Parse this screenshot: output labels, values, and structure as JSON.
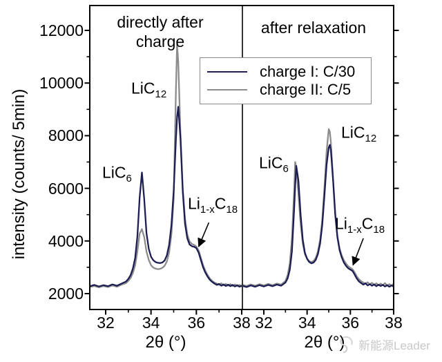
{
  "legend": {
    "items": [
      {
        "label": "charge I: C/30",
        "color": "#1e1e55"
      },
      {
        "label": "charge II: C/5",
        "color": "#8c8c8c"
      }
    ]
  },
  "watermark": {
    "text": "新能源Leader",
    "icon": "swirl-logo-icon",
    "color": "#c8c8c8"
  },
  "colors": {
    "axis": "#000000",
    "charge1": "#1e1e55",
    "charge2": "#8c8c8c",
    "legend_border": "#8a8a8a"
  },
  "chart_data": [
    {
      "type": "line",
      "title": "directly after charge",
      "xlabel": "2θ (°)",
      "ylabel": "intensity (counts/ 5min)",
      "xlim": [
        31.3,
        38
      ],
      "ylim": [
        1400,
        12950
      ],
      "xticks": [
        32,
        34,
        36,
        38
      ],
      "xminorticks": [
        33,
        35,
        37
      ],
      "yticks": [
        2000,
        4000,
        6000,
        8000,
        10000,
        12000
      ],
      "yminorticks": [
        3000,
        5000,
        7000,
        9000,
        11000
      ],
      "x": [
        31.3,
        31.5,
        31.7,
        31.9,
        32.1,
        32.3,
        32.5,
        32.7,
        32.9,
        33.0,
        33.1,
        33.2,
        33.3,
        33.4,
        33.5,
        33.6,
        33.7,
        33.8,
        33.9,
        34.0,
        34.1,
        34.2,
        34.3,
        34.4,
        34.5,
        34.6,
        34.7,
        34.8,
        34.9,
        35.0,
        35.1,
        35.15,
        35.2,
        35.3,
        35.4,
        35.5,
        35.6,
        35.7,
        35.8,
        35.9,
        36.0,
        36.1,
        36.2,
        36.3,
        36.4,
        36.5,
        36.6,
        36.7,
        36.8,
        36.9,
        37.0,
        37.1,
        37.2,
        37.3,
        37.4,
        37.5,
        37.6,
        37.7,
        37.8,
        37.9,
        38.0
      ],
      "series": [
        {
          "name": "charge II: C/5",
          "color": "#8c8c8c",
          "y": [
            2250,
            2290,
            2240,
            2290,
            2250,
            2310,
            2260,
            2340,
            2400,
            2480,
            2590,
            2780,
            3080,
            3620,
            4280,
            4450,
            4150,
            3600,
            3280,
            3080,
            2990,
            2950,
            2930,
            2940,
            2980,
            3060,
            3220,
            3560,
            4250,
            5600,
            9800,
            11450,
            10800,
            8100,
            6000,
            4850,
            4250,
            3980,
            3890,
            3850,
            3790,
            3640,
            3360,
            3070,
            2860,
            2700,
            2570,
            2480,
            2420,
            2380,
            2330,
            2390,
            2310,
            2370,
            2300,
            2360,
            2290,
            2350,
            2280,
            2330,
            2270
          ]
        },
        {
          "name": "charge I: C/30",
          "color": "#1e1e55",
          "y": [
            2280,
            2330,
            2270,
            2320,
            2280,
            2350,
            2300,
            2380,
            2460,
            2560,
            2700,
            2950,
            3350,
            4200,
            5650,
            6600,
            5600,
            4300,
            3700,
            3400,
            3270,
            3200,
            3170,
            3160,
            3180,
            3260,
            3450,
            3850,
            4600,
            5900,
            7900,
            8700,
            9100,
            7900,
            5900,
            4650,
            4100,
            3870,
            3800,
            3780,
            3730,
            3560,
            3270,
            2990,
            2790,
            2640,
            2520,
            2440,
            2380,
            2330,
            2370,
            2300,
            2350,
            2290,
            2340,
            2280,
            2330,
            2270,
            2320,
            2260,
            2300
          ]
        }
      ],
      "annotations": [
        {
          "id": "lic6-label-left",
          "parts": [
            [
              "LiC",
              false
            ],
            [
              "6",
              true
            ]
          ],
          "x": 31.85,
          "y": 6550
        },
        {
          "id": "lic12-label-left",
          "parts": [
            [
              "LiC",
              false
            ],
            [
              "12",
              true
            ]
          ],
          "x": 33.12,
          "y": 9750
        },
        {
          "id": "li1xc18-label-left",
          "parts": [
            [
              "Li",
              false
            ],
            [
              "1-x",
              true
            ],
            [
              "C",
              false
            ],
            [
              "18",
              true
            ]
          ],
          "x": 35.63,
          "y": 5350,
          "arrow": {
            "x1": 36.55,
            "y1": 4700,
            "x2": 36.1,
            "y2": 3780
          }
        }
      ]
    },
    {
      "type": "line",
      "title": "after relaxation",
      "xlabel": "2θ (°)",
      "ylabel": "intensity (counts/ 5min)",
      "xlim": [
        31.0,
        38
      ],
      "ylim": [
        1400,
        12950
      ],
      "xticks": [
        32,
        34,
        36,
        38
      ],
      "xminorticks": [
        33,
        35,
        37
      ],
      "yticks": [
        2000,
        4000,
        6000,
        8000,
        10000,
        12000
      ],
      "yminorticks": [
        3000,
        5000,
        7000,
        9000,
        11000
      ],
      "x": [
        31.0,
        31.2,
        31.4,
        31.6,
        31.8,
        32.0,
        32.2,
        32.4,
        32.6,
        32.8,
        33.0,
        33.1,
        33.2,
        33.3,
        33.4,
        33.45,
        33.5,
        33.6,
        33.7,
        33.8,
        33.9,
        34.0,
        34.1,
        34.2,
        34.3,
        34.4,
        34.5,
        34.6,
        34.7,
        34.8,
        34.9,
        35.0,
        35.05,
        35.1,
        35.2,
        35.3,
        35.4,
        35.5,
        35.6,
        35.7,
        35.8,
        35.9,
        36.0,
        36.1,
        36.2,
        36.3,
        36.4,
        36.5,
        36.6,
        36.7,
        36.8,
        36.9,
        37.0,
        37.1,
        37.2,
        37.3,
        37.4,
        37.5,
        37.6,
        37.7,
        37.8,
        37.9,
        38.0
      ],
      "series": [
        {
          "name": "charge II: C/5",
          "color": "#8c8c8c",
          "y": [
            2340,
            2290,
            2350,
            2300,
            2360,
            2310,
            2370,
            2320,
            2380,
            2340,
            2480,
            2700,
            3150,
            4100,
            5900,
            7000,
            6800,
            5800,
            4650,
            3900,
            3500,
            3320,
            3230,
            3200,
            3240,
            3360,
            3600,
            4050,
            4800,
            6000,
            7400,
            8250,
            8150,
            7750,
            6350,
            5050,
            4200,
            3720,
            3450,
            3270,
            3140,
            3040,
            2980,
            2920,
            2800,
            2650,
            2540,
            2470,
            2420,
            2370,
            2430,
            2350,
            2410,
            2330,
            2390,
            2310,
            2380,
            2320,
            2400,
            2300,
            2360,
            2310,
            2370
          ]
        },
        {
          "name": "charge I: C/30",
          "color": "#1e1e55",
          "y": [
            2300,
            2250,
            2310,
            2260,
            2320,
            2270,
            2330,
            2280,
            2340,
            2300,
            2420,
            2580,
            2900,
            3600,
            5200,
            6100,
            6850,
            6300,
            5000,
            4050,
            3550,
            3320,
            3200,
            3150,
            3180,
            3280,
            3500,
            3900,
            4600,
            5700,
            6900,
            7550,
            7650,
            7450,
            6300,
            5000,
            4150,
            3650,
            3380,
            3180,
            3050,
            2960,
            2910,
            2860,
            2720,
            2570,
            2460,
            2400,
            2340,
            2390,
            2310,
            2360,
            2300,
            2350,
            2280,
            2340,
            2290,
            2330,
            2270,
            2320,
            2260,
            2310,
            2270
          ]
        }
      ],
      "annotations": [
        {
          "id": "lic6-label-right",
          "parts": [
            [
              "LiC",
              false
            ],
            [
              "6",
              true
            ]
          ],
          "x": 31.78,
          "y": 6900
        },
        {
          "id": "lic12-label-right",
          "parts": [
            [
              "LiC",
              false
            ],
            [
              "12",
              true
            ]
          ],
          "x": 35.58,
          "y": 8050
        },
        {
          "id": "li1xc18-label-right",
          "parts": [
            [
              "Li",
              false
            ],
            [
              "1-x",
              true
            ],
            [
              "C",
              false
            ],
            [
              "18",
              true
            ]
          ],
          "x": 35.28,
          "y": 4600,
          "arrow": {
            "x1": 36.6,
            "y1": 4100,
            "x2": 36.12,
            "y2": 3080
          }
        }
      ]
    }
  ]
}
